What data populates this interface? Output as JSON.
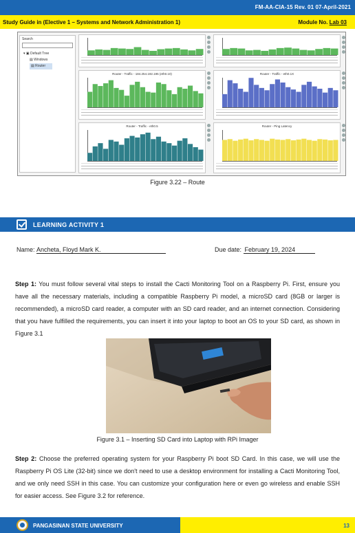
{
  "header": {
    "form_code": "FM-AA-CIA-15 Rev. 01  07-April-2021",
    "guide_title": "Study Guide in (Elective 1 – Systems and Network Administration 1)",
    "module_label": "Module No. ",
    "module_value": "Lab 03"
  },
  "figure_3_22": {
    "sidebar": {
      "search_label": "Search",
      "tree_root": "Default Tree",
      "tree_items": [
        "Windows",
        "Router"
      ]
    },
    "graph_titles": [
      "",
      "",
      "Router - Traffic - 184.254.192.195 (eth0.10)",
      "Router - Traffic - eth0.1X",
      "Router - Traffic - eth0.5",
      "Router - Ping Latency"
    ],
    "colors": {
      "green": "#5cb85c",
      "blue": "#5b6fc7",
      "teal": "#2f7f8a",
      "yellow": "#f2df52"
    },
    "caption": "Figure 3.22 – Route"
  },
  "learning_activity": {
    "title": "LEARNING ACTIVITY 1"
  },
  "student": {
    "name_label": "Name: ",
    "name_value": "Ancheta, Floyd Mark K.",
    "due_label": "Due date: ",
    "due_value": "February 19, 2024"
  },
  "step1": {
    "label": "Step 1:",
    "text": " You must follow several vital steps to install the Cacti Monitoring Tool on a Raspberry Pi. First, ensure you have all the necessary materials, including a compatible Raspberry Pi model, a microSD card (8GB or larger is recommended), a microSD card reader, a computer with an SD card reader, and an internet connection. Considering that you have fulfilled the requirements, you can insert it into your laptop to boot an OS to your SD card, as shown in Figure 3.1"
  },
  "figure_3_1": {
    "caption": "Figure 3.1 – Inserting SD Card into Laptop with RPi Imager"
  },
  "step2": {
    "label": "Step 2:",
    "text": " Choose the preferred operating system for your Raspberry Pi boot SD Card. In this case, we will use the Raspberry Pi OS Lite (32-bit) since we don't need to use a desktop environment for installing a Cacti Monitoring Tool, and we only need SSH in this case. You can customize your configuration here or even go wireless and enable SSH for easier access. See Figure 3.2 for reference."
  },
  "footer": {
    "university": "PANGASINAN STATE UNIVERSITY",
    "page_number": "13"
  }
}
